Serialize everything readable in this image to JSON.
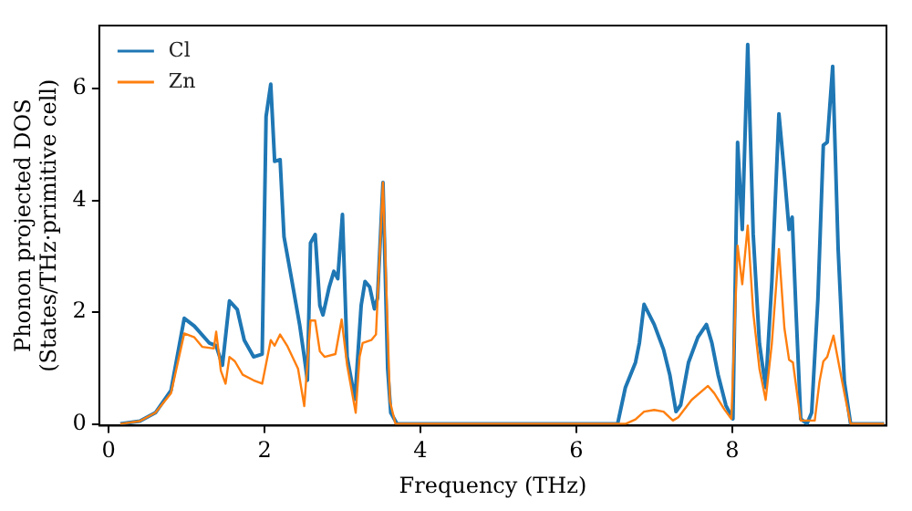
{
  "chart_data": {
    "type": "line",
    "xlabel": "Frequency (THz)",
    "ylabel": "Phonon projected DOS\n(States/THz·primitive cell)",
    "xlim": [
      -0.12,
      9.98
    ],
    "ylim": [
      -0.03,
      7.13
    ],
    "xticks": [
      0,
      2,
      4,
      6,
      8
    ],
    "yticks": [
      0,
      2,
      4,
      6
    ],
    "grid": false,
    "legend": "top left",
    "series": [
      {
        "name": "Cl",
        "color": "#1f77b4",
        "x": [
          0.15,
          0.4,
          0.6,
          0.8,
          0.97,
          1.1,
          1.29,
          1.38,
          1.46,
          1.55,
          1.65,
          1.74,
          1.86,
          1.97,
          2.02,
          2.08,
          2.13,
          2.2,
          2.25,
          2.35,
          2.45,
          2.51,
          2.55,
          2.59,
          2.65,
          2.71,
          2.75,
          2.83,
          2.89,
          2.94,
          3.0,
          3.06,
          3.16,
          3.24,
          3.29,
          3.35,
          3.41,
          3.45,
          3.52,
          3.58,
          3.62,
          3.7,
          6.53,
          6.63,
          6.76,
          6.81,
          6.87,
          7.0,
          7.12,
          7.2,
          7.28,
          7.34,
          7.44,
          7.56,
          7.67,
          7.74,
          7.82,
          7.92,
          8.01,
          8.07,
          8.13,
          8.2,
          8.27,
          8.35,
          8.43,
          8.51,
          8.6,
          8.67,
          8.73,
          8.77,
          8.82,
          8.88,
          8.96,
          9.02,
          9.1,
          9.17,
          9.22,
          9.29,
          9.36,
          9.44,
          9.52,
          9.95
        ],
        "values": [
          0,
          0.05,
          0.2,
          0.6,
          1.89,
          1.75,
          1.45,
          1.4,
          1.05,
          2.2,
          2.05,
          1.5,
          1.2,
          1.25,
          5.5,
          6.08,
          4.7,
          4.73,
          3.35,
          2.57,
          1.78,
          1.2,
          0.78,
          3.24,
          3.39,
          2.12,
          1.95,
          2.45,
          2.73,
          2.6,
          3.75,
          1.2,
          0.44,
          2.12,
          2.55,
          2.45,
          2.06,
          2.25,
          4.32,
          0.99,
          0.2,
          0,
          0,
          0.65,
          1.1,
          1.45,
          2.14,
          1.78,
          1.33,
          0.88,
          0.22,
          0.34,
          1.1,
          1.55,
          1.78,
          1.45,
          0.88,
          0.33,
          0.09,
          5.04,
          3.48,
          6.79,
          3.4,
          1.44,
          0.65,
          2.55,
          5.55,
          4.48,
          3.48,
          3.7,
          2.0,
          0.09,
          0,
          0.2,
          2.23,
          4.99,
          5.04,
          6.4,
          3.13,
          0.75,
          0,
          0
        ]
      },
      {
        "name": "Zn",
        "color": "#ff7f0e",
        "x": [
          0.15,
          0.4,
          0.6,
          0.8,
          0.97,
          1.1,
          1.2,
          1.35,
          1.38,
          1.44,
          1.5,
          1.55,
          1.62,
          1.72,
          1.86,
          1.97,
          2.08,
          2.13,
          2.2,
          2.29,
          2.43,
          2.51,
          2.59,
          2.65,
          2.71,
          2.77,
          2.91,
          2.99,
          3.06,
          3.17,
          3.22,
          3.26,
          3.37,
          3.43,
          3.52,
          3.56,
          3.61,
          3.68,
          6.63,
          6.76,
          6.87,
          7.0,
          7.12,
          7.24,
          7.31,
          7.48,
          7.69,
          7.77,
          7.9,
          7.99,
          8.07,
          8.13,
          8.2,
          8.27,
          8.35,
          8.43,
          8.51,
          8.6,
          8.67,
          8.73,
          8.78,
          8.88,
          9.06,
          9.12,
          9.17,
          9.22,
          9.3,
          9.38,
          9.44,
          9.52,
          9.95
        ],
        "values": [
          0,
          0.05,
          0.2,
          0.55,
          1.62,
          1.55,
          1.38,
          1.35,
          1.65,
          0.95,
          0.72,
          1.2,
          1.12,
          0.88,
          0.78,
          0.72,
          1.5,
          1.4,
          1.6,
          1.4,
          0.99,
          0.32,
          1.85,
          1.85,
          1.3,
          1.2,
          1.25,
          1.87,
          1.05,
          0.2,
          1.2,
          1.45,
          1.5,
          1.6,
          4.32,
          2.57,
          0.4,
          0,
          0,
          0.08,
          0.22,
          0.25,
          0.22,
          0.06,
          0.12,
          0.43,
          0.68,
          0.55,
          0.26,
          0.09,
          3.19,
          2.5,
          3.55,
          2.0,
          0.99,
          0.43,
          1.45,
          3.13,
          1.72,
          1.15,
          1.1,
          0.06,
          0.06,
          0.75,
          1.12,
          1.2,
          1.58,
          0.99,
          0.55,
          0,
          0
        ]
      }
    ]
  }
}
